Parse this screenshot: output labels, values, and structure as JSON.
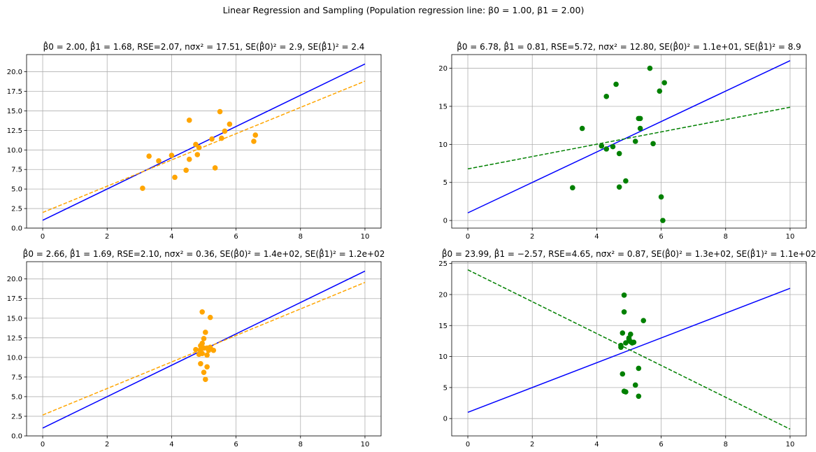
{
  "figure": {
    "suptitle": "Linear Regression and Sampling (Population regression line: β0 = 1.00, β1 = 2.00)"
  },
  "chart_data": [
    {
      "type": "scatter",
      "title": "β̂0 = 2.00, β̂1 = 1.68, RSE=2.07, nσx² = 17.51, SE(β̂0)² = 2.9, SE(β̂1)² = 2.4",
      "xlim": [
        -0.5,
        10.5
      ],
      "ylim": [
        0,
        22.2
      ],
      "xticks": [
        0,
        2,
        4,
        6,
        8,
        10
      ],
      "yticks": [
        0,
        2.5,
        5,
        7.5,
        10,
        12.5,
        15,
        17.5,
        20
      ],
      "ytick_labels": [
        "0.0",
        "2.5",
        "5.0",
        "7.5",
        "10.0",
        "12.5",
        "15.0",
        "17.5",
        "20.0"
      ],
      "grid": true,
      "point_color": "#ffa500",
      "points": [
        [
          3.1,
          5.1
        ],
        [
          3.3,
          9.2
        ],
        [
          3.6,
          8.6
        ],
        [
          4.0,
          9.3
        ],
        [
          4.1,
          6.5
        ],
        [
          4.45,
          7.4
        ],
        [
          4.55,
          8.8
        ],
        [
          4.55,
          13.8
        ],
        [
          4.75,
          10.7
        ],
        [
          4.8,
          9.4
        ],
        [
          4.85,
          10.3
        ],
        [
          5.25,
          11.4
        ],
        [
          5.35,
          7.7
        ],
        [
          5.5,
          14.9
        ],
        [
          5.55,
          11.5
        ],
        [
          5.65,
          12.4
        ],
        [
          5.8,
          13.3
        ],
        [
          6.55,
          11.1
        ],
        [
          6.6,
          11.9
        ]
      ],
      "population_line": {
        "b0": 1.0,
        "b1": 2.0,
        "color": "#0000ff"
      },
      "fit_line": {
        "b0": 2.0,
        "b1": 1.68,
        "color": "#ffa500",
        "style": "dashed"
      }
    },
    {
      "type": "scatter",
      "title": "β̂0 = 6.78, β̂1 = 0.81, RSE=5.72, nσx² = 12.80, SE(β̂0)² = 1.1e+01, SE(β̂1)² = 8.9",
      "xlim": [
        -0.5,
        10.5
      ],
      "ylim": [
        -1.0,
        21.8
      ],
      "xticks": [
        0,
        2,
        4,
        6,
        8,
        10
      ],
      "yticks": [
        0,
        5,
        10,
        15,
        20
      ],
      "ytick_labels": [
        "0",
        "5",
        "10",
        "15",
        "20"
      ],
      "grid": true,
      "point_color": "#008000",
      "points": [
        [
          3.25,
          4.3
        ],
        [
          3.55,
          12.1
        ],
        [
          4.15,
          9.8
        ],
        [
          4.3,
          9.4
        ],
        [
          4.3,
          16.3
        ],
        [
          4.5,
          9.7
        ],
        [
          4.6,
          17.9
        ],
        [
          4.7,
          8.8
        ],
        [
          4.7,
          4.4
        ],
        [
          4.9,
          5.2
        ],
        [
          5.2,
          10.4
        ],
        [
          5.3,
          13.4
        ],
        [
          5.35,
          13.4
        ],
        [
          5.35,
          12.1
        ],
        [
          5.65,
          20.0
        ],
        [
          5.75,
          10.1
        ],
        [
          5.95,
          17.0
        ],
        [
          6.0,
          3.1
        ],
        [
          6.05,
          0.0
        ],
        [
          6.1,
          18.1
        ]
      ],
      "population_line": {
        "b0": 1.0,
        "b1": 2.0,
        "color": "#0000ff"
      },
      "fit_line": {
        "b0": 6.78,
        "b1": 0.81,
        "color": "#008000",
        "style": "dashed"
      }
    },
    {
      "type": "scatter",
      "title": "β̂0 = 2.66, β̂1 = 1.69, RSE=2.10, nσx² = 0.36, SE(β̂0)² = 1.4e+02, SE(β̂1)² = 1.2e+02",
      "xlim": [
        -0.5,
        10.5
      ],
      "ylim": [
        0,
        22.2
      ],
      "xticks": [
        0,
        2,
        4,
        6,
        8,
        10
      ],
      "yticks": [
        0,
        2.5,
        5,
        7.5,
        10,
        12.5,
        15,
        17.5,
        20
      ],
      "ytick_labels": [
        "0.0",
        "2.5",
        "5.0",
        "7.5",
        "10.0",
        "12.5",
        "15.0",
        "17.5",
        "20.0"
      ],
      "grid": true,
      "point_color": "#ffa500",
      "points": [
        [
          4.75,
          11.0
        ],
        [
          4.85,
          10.4
        ],
        [
          4.9,
          9.2
        ],
        [
          4.9,
          11.0
        ],
        [
          4.9,
          11.5
        ],
        [
          4.95,
          15.8
        ],
        [
          4.95,
          11.8
        ],
        [
          4.95,
          10.5
        ],
        [
          5.0,
          12.4
        ],
        [
          5.0,
          8.1
        ],
        [
          5.0,
          11.2
        ],
        [
          5.05,
          13.2
        ],
        [
          5.05,
          7.2
        ],
        [
          5.1,
          8.8
        ],
        [
          5.1,
          10.3
        ],
        [
          5.1,
          11.2
        ],
        [
          5.15,
          10.9
        ],
        [
          5.2,
          11.3
        ],
        [
          5.2,
          15.1
        ],
        [
          5.3,
          10.9
        ]
      ],
      "population_line": {
        "b0": 1.0,
        "b1": 2.0,
        "color": "#0000ff"
      },
      "fit_line": {
        "b0": 2.66,
        "b1": 1.69,
        "color": "#ffa500",
        "style": "dashed"
      }
    },
    {
      "type": "scatter",
      "title": "β̂0 = 23.99, β̂1 = −2.57, RSE=4.65, nσx² = 0.87, SE(β̂0)² = 1.3e+02, SE(β̂1)² = 1.1e+02",
      "xlim": [
        -0.5,
        10.5
      ],
      "ylim": [
        -2.8,
        25.3
      ],
      "xticks": [
        0,
        2,
        4,
        6,
        8,
        10
      ],
      "yticks": [
        0,
        5,
        10,
        15,
        20,
        25
      ],
      "ytick_labels": [
        "0",
        "5",
        "10",
        "15",
        "20",
        "25"
      ],
      "grid": true,
      "point_color": "#008000",
      "points": [
        [
          4.75,
          11.8
        ],
        [
          4.75,
          11.5
        ],
        [
          4.8,
          13.8
        ],
        [
          4.8,
          7.2
        ],
        [
          4.85,
          4.4
        ],
        [
          4.85,
          17.2
        ],
        [
          4.85,
          19.9
        ],
        [
          4.9,
          12.2
        ],
        [
          4.9,
          4.3
        ],
        [
          5.0,
          12.8
        ],
        [
          5.0,
          13.0
        ],
        [
          5.05,
          13.6
        ],
        [
          5.05,
          12.4
        ],
        [
          5.1,
          12.2
        ],
        [
          5.15,
          12.3
        ],
        [
          5.2,
          5.4
        ],
        [
          5.3,
          8.1
        ],
        [
          5.3,
          3.6
        ],
        [
          5.45,
          15.8
        ]
      ],
      "population_line": {
        "b0": 1.0,
        "b1": 2.0,
        "color": "#0000ff"
      },
      "fit_line": {
        "b0": 23.99,
        "b1": -2.57,
        "color": "#008000",
        "style": "dashed"
      }
    }
  ]
}
